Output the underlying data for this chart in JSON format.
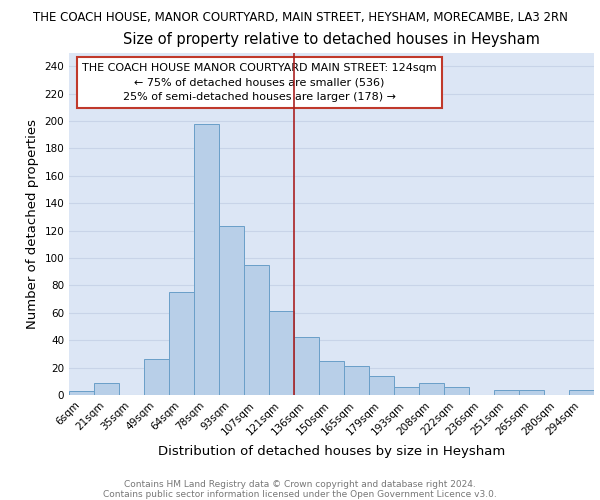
{
  "page_title": "THE COACH HOUSE, MANOR COURTYARD, MAIN STREET, HEYSHAM, MORECAMBE, LA3 2RN",
  "chart_title": "Size of property relative to detached houses in Heysham",
  "xlabel": "Distribution of detached houses by size in Heysham",
  "ylabel": "Number of detached properties",
  "categories": [
    "6sqm",
    "21sqm",
    "35sqm",
    "49sqm",
    "64sqm",
    "78sqm",
    "93sqm",
    "107sqm",
    "121sqm",
    "136sqm",
    "150sqm",
    "165sqm",
    "179sqm",
    "193sqm",
    "208sqm",
    "222sqm",
    "236sqm",
    "251sqm",
    "265sqm",
    "280sqm",
    "294sqm"
  ],
  "values": [
    3,
    9,
    0,
    26,
    75,
    198,
    123,
    95,
    61,
    42,
    25,
    21,
    14,
    6,
    9,
    6,
    0,
    4,
    4,
    0,
    4
  ],
  "bar_color": "#b8cfe8",
  "bar_edge_color": "#6a9fc8",
  "vline_x": 8.5,
  "vline_color": "#aa2222",
  "annotation_box_text_line1": "THE COACH HOUSE MANOR COURTYARD MAIN STREET: 124sqm",
  "annotation_box_text_line2": "← 75% of detached houses are smaller (536)",
  "annotation_box_text_line3": "25% of semi-detached houses are larger (178) →",
  "annotation_box_edgecolor": "#c0392b",
  "annotation_box_facecolor": "#ffffff",
  "ylim": [
    0,
    250
  ],
  "yticks": [
    0,
    20,
    40,
    60,
    80,
    100,
    120,
    140,
    160,
    180,
    200,
    220,
    240
  ],
  "grid_color": "#c8d4e8",
  "background_color": "#dce6f5",
  "footer_line1": "Contains HM Land Registry data © Crown copyright and database right 2024.",
  "footer_line2": "Contains public sector information licensed under the Open Government Licence v3.0.",
  "page_title_fontsize": 8.5,
  "chart_title_fontsize": 10.5,
  "axis_label_fontsize": 9.5,
  "tick_fontsize": 7.5,
  "annotation_fontsize": 8,
  "footer_fontsize": 6.5
}
